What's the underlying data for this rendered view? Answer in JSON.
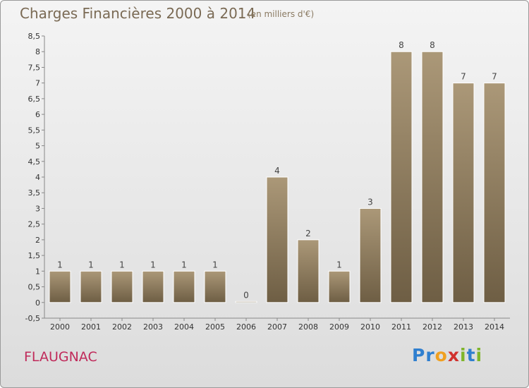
{
  "header": {
    "title": "Charges Financières 2000 à 2014",
    "subtitle": "(en milliers d'€)"
  },
  "footer": {
    "town": "FLAUGNAC",
    "brand_letters": [
      "P",
      "r",
      "o",
      "x",
      "i",
      "t",
      "i"
    ],
    "brand_colors": [
      "#2f7fcf",
      "#2f7fcf",
      "#f0a020",
      "#d0312d",
      "#7fb52b",
      "#2f7fcf",
      "#7fb52b"
    ]
  },
  "chart_data": {
    "type": "bar",
    "categories": [
      "2000",
      "2001",
      "2002",
      "2003",
      "2004",
      "2005",
      "2006",
      "2007",
      "2008",
      "2009",
      "2010",
      "2011",
      "2012",
      "2013",
      "2014"
    ],
    "values": [
      1,
      1,
      1,
      1,
      1,
      1,
      0,
      4,
      2,
      1,
      3,
      8,
      8,
      7,
      7
    ],
    "data_labels": [
      "1",
      "1",
      "1",
      "1",
      "1",
      "1",
      "0",
      "4",
      "2",
      "1",
      "3",
      "8",
      "8",
      "7",
      "7"
    ],
    "y_ticks": [
      "-0,5",
      "0",
      "0,5",
      "1",
      "1,5",
      "2",
      "2,5",
      "3",
      "3,5",
      "4",
      "4,5",
      "5",
      "5,5",
      "6",
      "6,5",
      "7",
      "7,5",
      "8",
      "8,5"
    ],
    "ylim": [
      -0.5,
      8.5
    ],
    "title": "Charges Financières 2000 à 2014",
    "xlabel": "",
    "ylabel": "",
    "grid": false,
    "bar_color": "#8c7a5c",
    "bar_color_light": "#a8957a",
    "bar_color_dark": "#6e5e44"
  }
}
